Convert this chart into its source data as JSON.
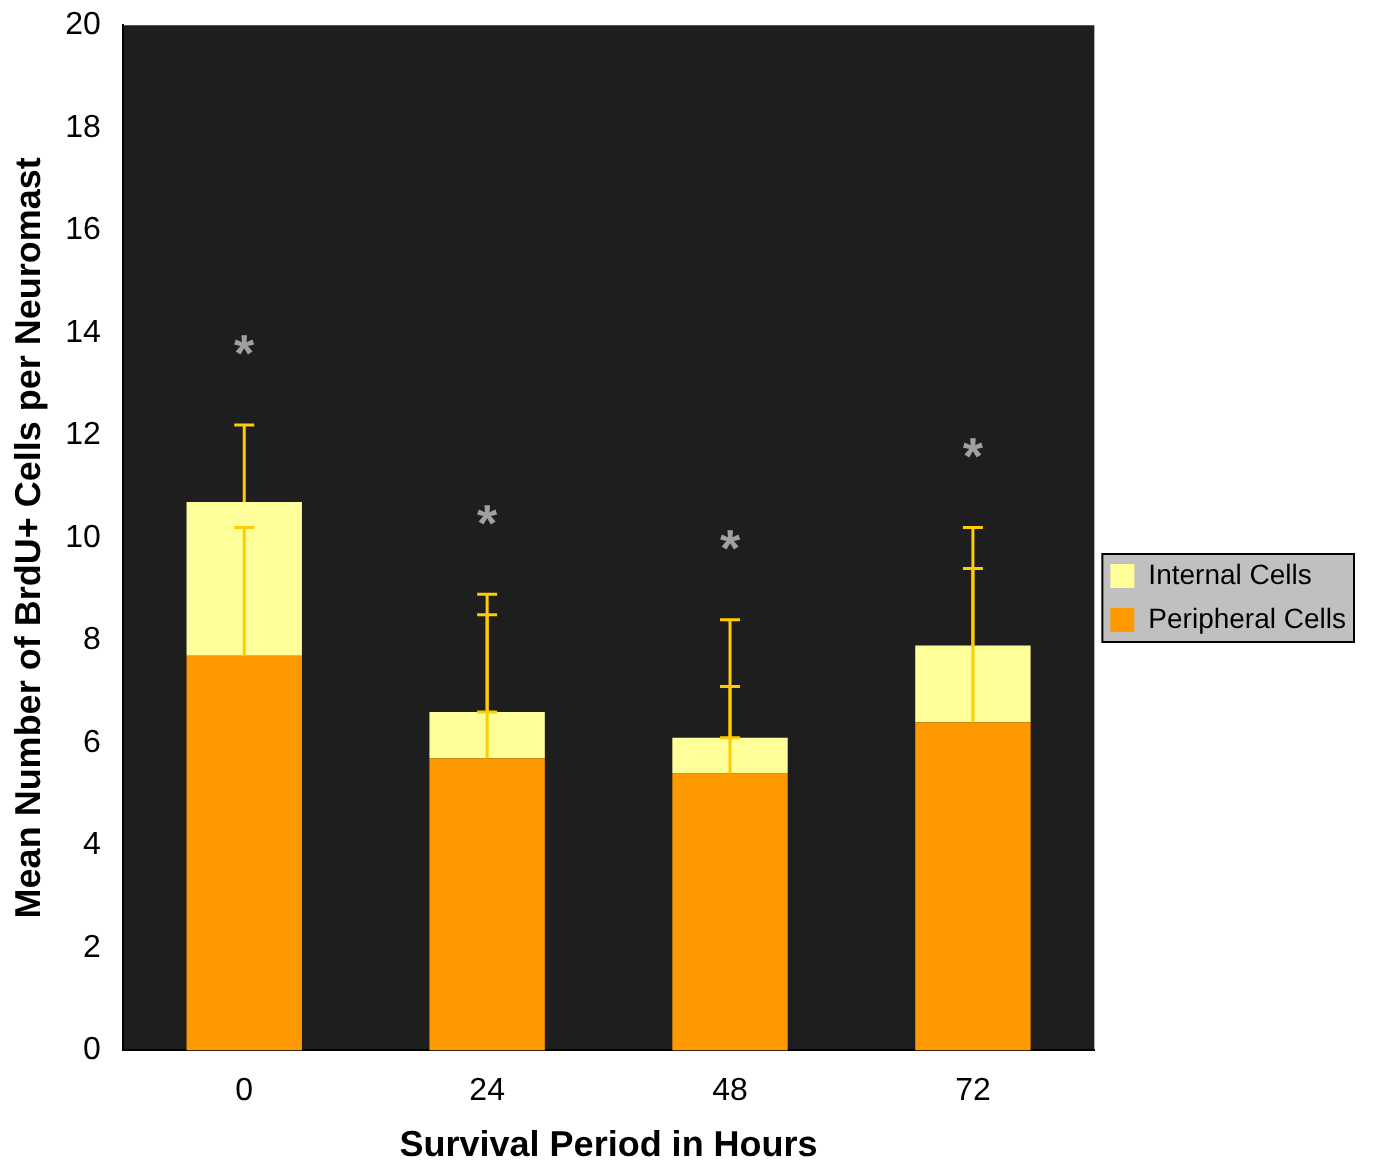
{
  "chart_data": {
    "type": "bar",
    "stacked": true,
    "xlabel": "Survival Period in Hours",
    "ylabel": "Mean Number of BrdU+ Cells per Neuromast",
    "categories": [
      "0",
      "24",
      "48",
      "72"
    ],
    "series": [
      {
        "name": "Peripheral Cells",
        "color": "#ff9900",
        "values": [
          7.7,
          5.7,
          5.4,
          6.4
        ],
        "errors": [
          [
            7.7,
            10.2
          ],
          [
            5.7,
            8.5
          ],
          [
            5.4,
            7.1
          ],
          [
            6.4,
            9.4
          ]
        ]
      },
      {
        "name": "Internal Cells",
        "color": "#ffff99",
        "values": [
          3.0,
          0.9,
          0.7,
          1.5
        ],
        "errors": [
          [
            10.7,
            12.2
          ],
          [
            6.6,
            8.9
          ],
          [
            6.1,
            8.4
          ],
          [
            7.9,
            10.2
          ]
        ]
      }
    ],
    "ylim": [
      0,
      20
    ],
    "yticks": [
      0,
      2,
      4,
      6,
      8,
      10,
      12,
      14,
      16,
      18,
      20
    ],
    "grid": false,
    "legend": "right",
    "annotations": [
      "*",
      "*",
      "*",
      "*"
    ]
  }
}
